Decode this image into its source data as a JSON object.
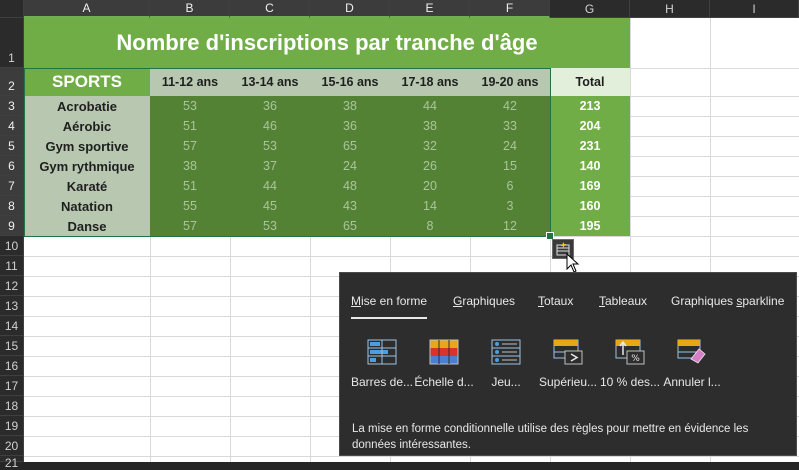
{
  "columns": [
    "A",
    "B",
    "C",
    "D",
    "E",
    "F",
    "G",
    "H",
    "I"
  ],
  "rows": [
    "1",
    "2",
    "3",
    "4",
    "5",
    "6",
    "7",
    "8",
    "9",
    "10",
    "11",
    "12",
    "13",
    "14",
    "15",
    "16",
    "17",
    "18",
    "19",
    "20",
    "21"
  ],
  "table": {
    "title": "Nombre d'inscriptions par tranche d'âge",
    "corner_label": "SPORTS",
    "age_headers": [
      "11-12 ans",
      "13-14 ans",
      "15-16 ans",
      "17-18 ans",
      "19-20 ans"
    ],
    "total_header": "Total",
    "sports": [
      {
        "name": "Acrobatie",
        "values": [
          "53",
          "36",
          "38",
          "44",
          "42"
        ],
        "total": "213"
      },
      {
        "name": "Aérobic",
        "values": [
          "51",
          "46",
          "36",
          "38",
          "33"
        ],
        "total": "204"
      },
      {
        "name": "Gym sportive",
        "values": [
          "57",
          "53",
          "65",
          "32",
          "24"
        ],
        "total": "231"
      },
      {
        "name": "Gym rythmique",
        "values": [
          "38",
          "37",
          "24",
          "26",
          "15"
        ],
        "total": "140"
      },
      {
        "name": "Karaté",
        "values": [
          "51",
          "44",
          "48",
          "20",
          "6"
        ],
        "total": "169"
      },
      {
        "name": "Natation",
        "values": [
          "55",
          "45",
          "43",
          "14",
          "3"
        ],
        "total": "160"
      },
      {
        "name": "Danse",
        "values": [
          "57",
          "53",
          "65",
          "8",
          "12"
        ],
        "total": "195"
      }
    ]
  },
  "quick_analysis": {
    "tabs": [
      {
        "pre": "",
        "key": "M",
        "post": "ise en forme"
      },
      {
        "pre": "",
        "key": "G",
        "post": "raphiques"
      },
      {
        "pre": "",
        "key": "T",
        "post": "otaux"
      },
      {
        "pre": "",
        "key": "T",
        "post": "ableaux"
      },
      {
        "pre": "Graphiques ",
        "key": "s",
        "post": "parkline"
      }
    ],
    "tools": [
      {
        "label": "Barres de...",
        "icon": "data-bars-icon"
      },
      {
        "label": "Échelle d...",
        "icon": "color-scale-icon"
      },
      {
        "label": "Jeu...",
        "icon": "icon-set-icon"
      },
      {
        "label": "Supérieu...",
        "icon": "greater-than-icon"
      },
      {
        "label": "10 % des...",
        "icon": "top-10-percent-icon"
      },
      {
        "label": "Annuler l...",
        "icon": "clear-format-icon"
      }
    ],
    "description": "La mise en forme conditionnelle utilise des règles pour mettre en évidence les données intéressantes."
  },
  "colors": {
    "title_bg": "#70ad47",
    "value_bg": "#548235",
    "label_bg": "#b7c7b0",
    "total_bg": "#70ad47",
    "selection": "#217346"
  }
}
